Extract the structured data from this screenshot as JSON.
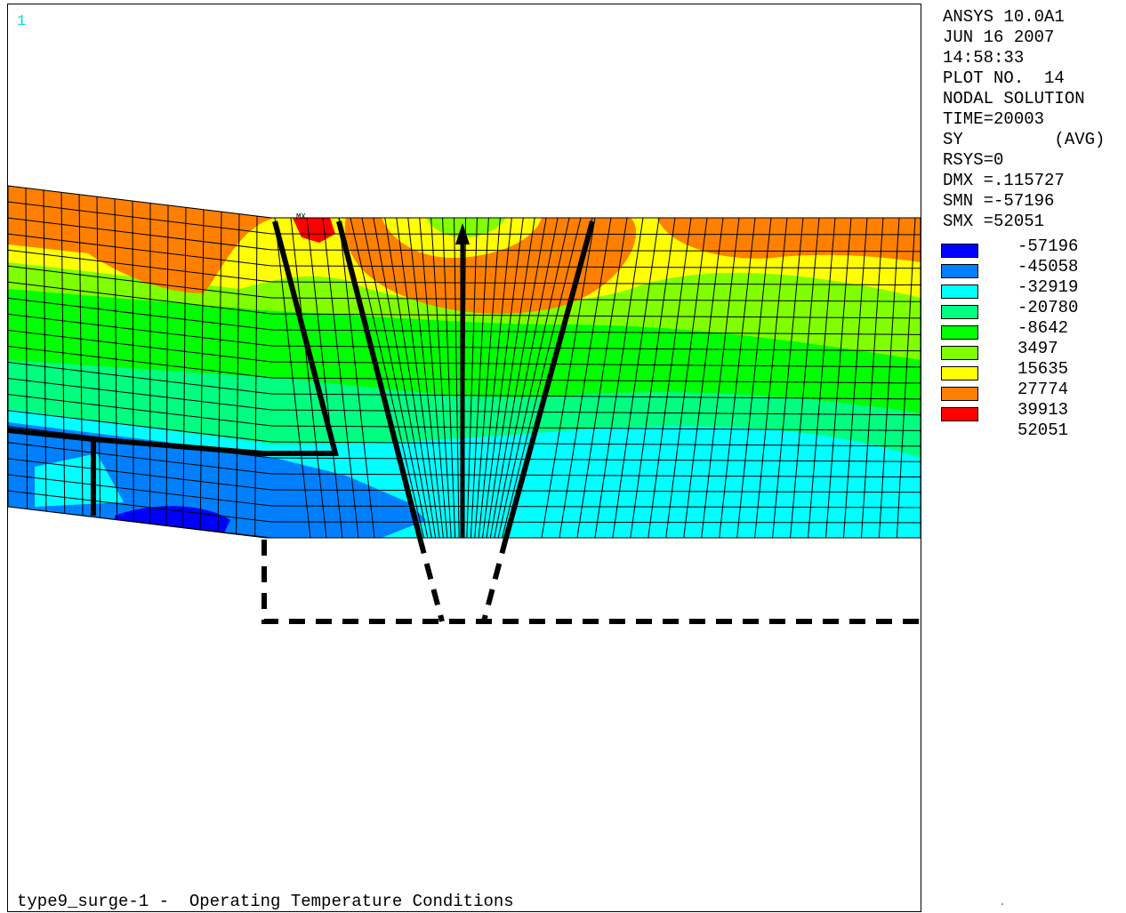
{
  "window": {
    "number": "1"
  },
  "info": {
    "lines": [
      "ANSYS 10.0A1",
      "JUN 16 2007",
      "14:58:33",
      "PLOT NO.  14",
      "NODAL SOLUTION",
      "TIME=20003",
      "SY         (AVG)",
      "RSYS=0",
      "DMX =.115727",
      "SMN =-57196",
      "SMX =52051"
    ]
  },
  "legend": {
    "values": [
      "-57196",
      "-45058",
      "-32919",
      "-20780",
      "-8642",
      "3497",
      "15635",
      "27774",
      "39913",
      "52051"
    ],
    "colors": [
      "#0000ff",
      "#0080ff",
      "#00ffff",
      "#00ff80",
      "#00ff00",
      "#80ff00",
      "#ffff00",
      "#ff8000",
      "#ff0000",
      ""
    ]
  },
  "plot": {
    "max_label": "MX",
    "subtitle": "type9_surge-1 -  Operating Temperature Conditions",
    "contour_colors": {
      "orange": "#ff8000",
      "yellow": "#ffff00",
      "yellow_green": "#80ff00",
      "green": "#00ff00",
      "sea_green": "#00ff80",
      "cyan": "#00ffff",
      "blue_mid": "#0080ff",
      "blue": "#0000ff",
      "red": "#ff0000"
    }
  }
}
